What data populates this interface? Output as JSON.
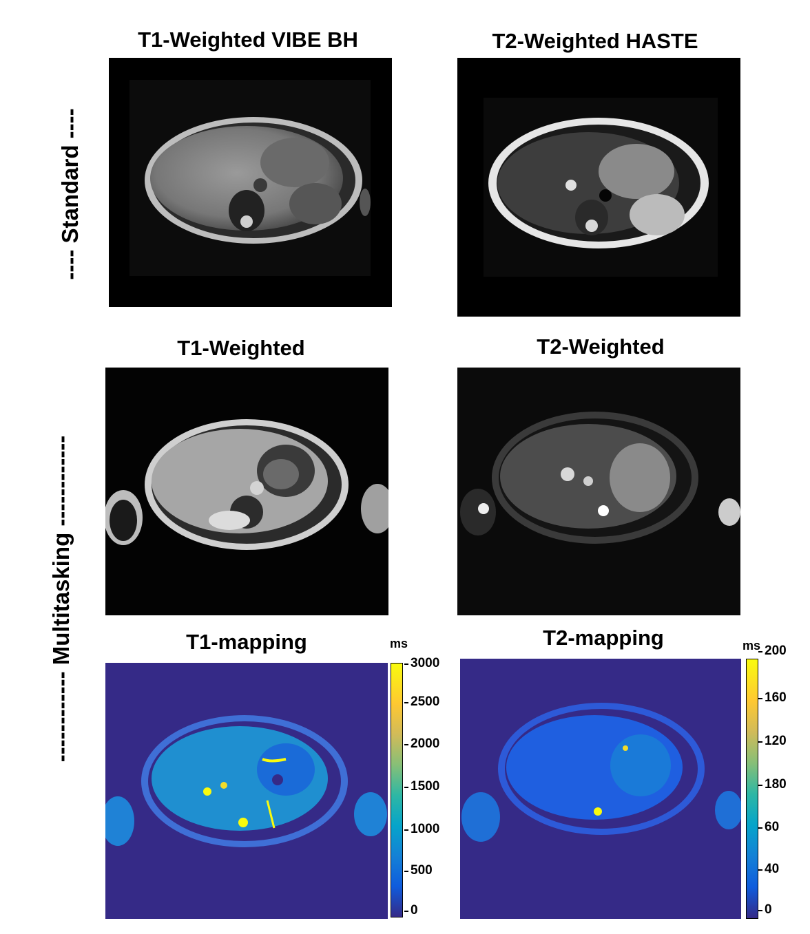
{
  "row_labels": {
    "standard": "---- Standard ----",
    "multitasking": "------------ Multitasking ------------"
  },
  "panels": {
    "t1_vibe": "T1-Weighted VIBE BH",
    "t2_haste": "T2-Weighted HASTE",
    "t1_weighted": "T1-Weighted",
    "t2_weighted": "T2-Weighted",
    "t1_mapping": "T1-mapping",
    "t2_mapping": "T2-mapping"
  },
  "colorbars": {
    "t1": {
      "unit": "ms",
      "ticks": [
        "3000",
        "2500",
        "2000",
        "1500",
        "1000",
        "500",
        "0"
      ]
    },
    "t2": {
      "unit": "ms",
      "ticks": [
        "200",
        "160",
        "120",
        "180",
        "60",
        "40",
        "0"
      ]
    }
  },
  "colors": {
    "map_background": "#352a87",
    "map_tissue": "#1f82d6",
    "map_highlight": "#f9fb0e"
  }
}
